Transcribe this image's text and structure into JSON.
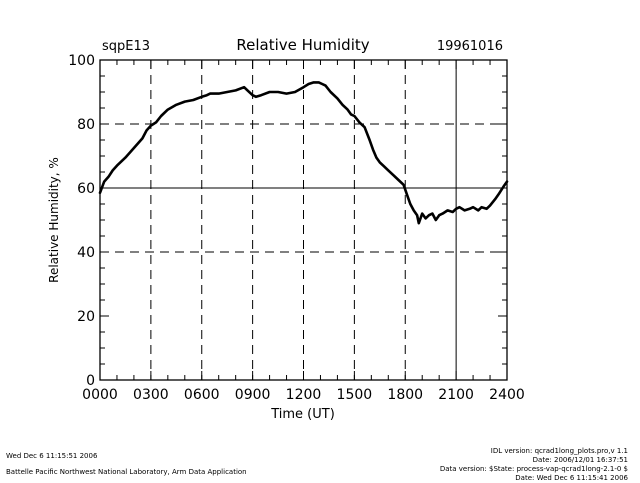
{
  "chart_data": {
    "type": "line",
    "site": "sqpE13",
    "title": "Relative Humidity",
    "date": "19961016",
    "xlabel": "Time (UT)",
    "ylabel": "Relative Humidity, %",
    "xlim": [
      0,
      2400
    ],
    "ylim": [
      0,
      100
    ],
    "xticks": [
      0,
      300,
      600,
      900,
      1200,
      1500,
      1800,
      2100,
      2400
    ],
    "xtick_labels": [
      "0000",
      "0300",
      "0600",
      "0900",
      "1200",
      "1500",
      "1800",
      "2100",
      "2400"
    ],
    "yticks": [
      0,
      20,
      40,
      60,
      80,
      100
    ],
    "ytick_labels": [
      "0",
      "20",
      "40",
      "60",
      "80",
      "100"
    ],
    "grid_x": [
      300,
      600,
      900,
      1200,
      1500,
      1800
    ],
    "grid_y": [
      40,
      60,
      80
    ],
    "ref_x": 2100,
    "ref_y": 60,
    "series": [
      {
        "name": "Relative Humidity",
        "x": [
          0,
          25,
          50,
          75,
          100,
          150,
          200,
          250,
          275,
          300,
          330,
          360,
          400,
          450,
          500,
          550,
          600,
          630,
          650,
          700,
          750,
          800,
          850,
          870,
          900,
          920,
          950,
          1000,
          1050,
          1100,
          1150,
          1200,
          1230,
          1260,
          1290,
          1310,
          1330,
          1360,
          1400,
          1430,
          1460,
          1480,
          1500,
          1530,
          1560,
          1590,
          1610,
          1630,
          1650,
          1670,
          1700,
          1730,
          1760,
          1790,
          1810,
          1830,
          1850,
          1870,
          1880,
          1900,
          1920,
          1940,
          1960,
          1980,
          2000,
          2020,
          2050,
          2080,
          2100,
          2120,
          2150,
          2180,
          2200,
          2230,
          2250,
          2280,
          2300,
          2330,
          2350,
          2380,
          2400
        ],
        "y": [
          58.5,
          62,
          63.5,
          65.5,
          67,
          69.5,
          72.5,
          75.5,
          78,
          79.5,
          80.5,
          82.5,
          84.5,
          86,
          87,
          87.5,
          88.5,
          89,
          89.5,
          89.5,
          90,
          90.5,
          91.5,
          90.5,
          89,
          88.5,
          89,
          90,
          90,
          89.5,
          90,
          91.5,
          92.5,
          93,
          93,
          92.5,
          92,
          90,
          88,
          86,
          84.5,
          83,
          82.5,
          80.5,
          79,
          75,
          72,
          69.5,
          68,
          67,
          65.5,
          64,
          62.5,
          61,
          58,
          55,
          53,
          51.5,
          49,
          52,
          50.5,
          51.5,
          52,
          50,
          51.5,
          52,
          53,
          52.5,
          53.5,
          54,
          53,
          53.5,
          54,
          53,
          54,
          53.5,
          54.5,
          56.5,
          58,
          60.5,
          62
        ]
      }
    ]
  },
  "footer": {
    "left_line1": "Wed Dec  6 11:15:51 2006",
    "left_line2": "Battelle Pacific Northwest National Laboratory, Arm Data Application",
    "right_line1": "IDL version: qcrad1long_plots.pro,v 1.1",
    "right_line2": "Date: 2006/12/01 16:37:51",
    "right_line3": "Data version: $State: process-vap-qcrad1long-2.1-0 $",
    "right_line4": "Date: Wed Dec  6 11:15:41 2006"
  },
  "colors": {
    "line": "#000000",
    "background": "#ffffff"
  }
}
